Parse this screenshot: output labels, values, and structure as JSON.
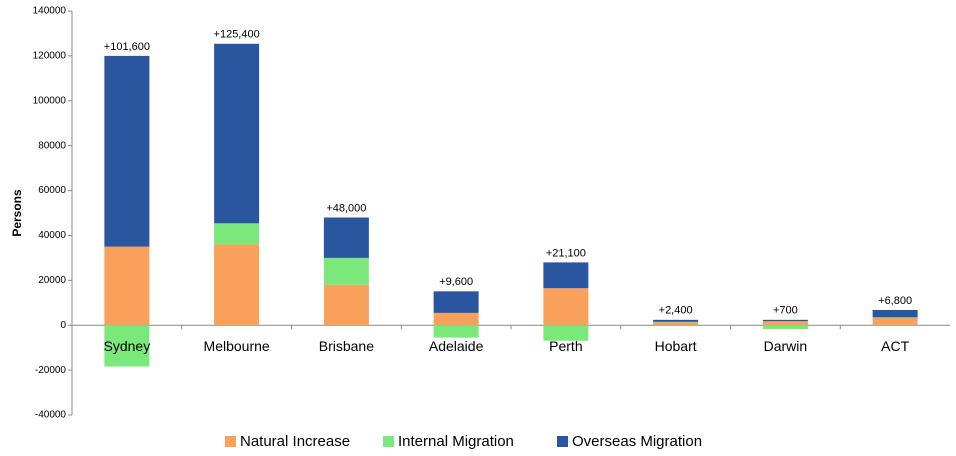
{
  "chart_data": {
    "type": "stacked_bar",
    "y_label": "Persons",
    "categories": [
      "Sydney",
      "Melbourne",
      "Brisbane",
      "Adelaide",
      "Perth",
      "Hobart",
      "Darwin",
      "ACT"
    ],
    "series": [
      {
        "name": "Natural Increase",
        "color": "#f9a05a",
        "values": [
          35000,
          36000,
          18000,
          5500,
          16500,
          1200,
          1800,
          3300
        ]
      },
      {
        "name": "Internal Migration",
        "color": "#7be87b",
        "values": [
          -18400,
          9400,
          12000,
          -5500,
          -6900,
          300,
          -1700,
          200
        ]
      },
      {
        "name": "Overseas Migration",
        "color": "#2a56a0",
        "values": [
          85000,
          80000,
          18000,
          9600,
          11500,
          900,
          600,
          3300
        ]
      }
    ],
    "net_change": {
      "values": [
        101600,
        125400,
        48000,
        9600,
        21100,
        2400,
        700,
        6800
      ],
      "value_labels": [
        "+101,600",
        "+125,400",
        "+48,000",
        "+9,600",
        "+21,100",
        "+2,400",
        "+700",
        "+6,800"
      ]
    },
    "ylim": [
      -40000,
      140000
    ],
    "yticks": [
      -40000,
      -20000,
      0,
      20000,
      40000,
      60000,
      80000,
      100000,
      120000,
      140000
    ],
    "grid": false,
    "legend": "bottom"
  }
}
